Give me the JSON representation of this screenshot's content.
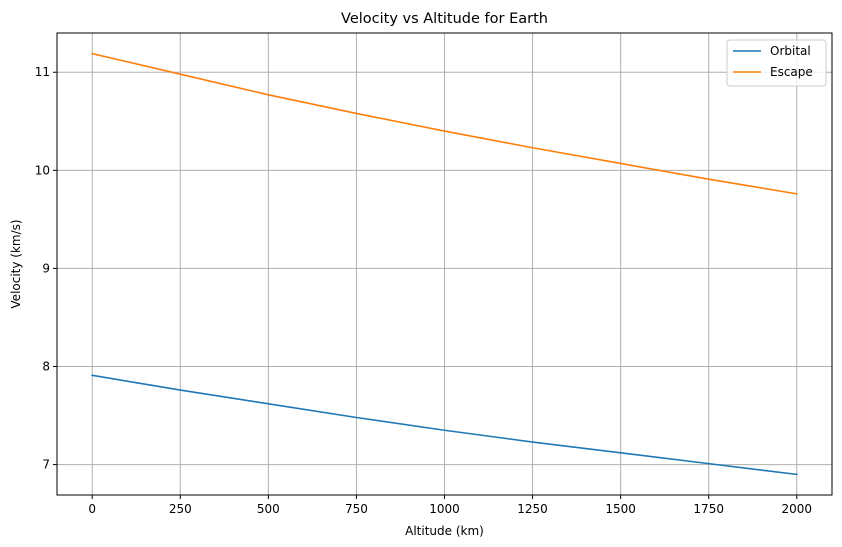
{
  "chart_data": {
    "type": "line",
    "title": "Velocity vs Altitude for Earth",
    "xlabel": "Altitude (km)",
    "ylabel": "Velocity (km/s)",
    "xlim": [
      -100,
      2100
    ],
    "ylim": [
      6.69,
      11.4
    ],
    "xticks": [
      0,
      250,
      500,
      750,
      1000,
      1250,
      1500,
      1750,
      2000
    ],
    "yticks": [
      7,
      8,
      9,
      10,
      11
    ],
    "grid": true,
    "legend_position": "top-right",
    "x": [
      0,
      250,
      500,
      750,
      1000,
      1250,
      1500,
      1750,
      2000
    ],
    "series": [
      {
        "name": "Orbital",
        "color": "#1f77b4",
        "values": [
          7.91,
          7.76,
          7.62,
          7.48,
          7.35,
          7.23,
          7.12,
          7.01,
          6.9
        ]
      },
      {
        "name": "Escape",
        "color": "#ff7f0e",
        "values": [
          11.19,
          10.98,
          10.77,
          10.58,
          10.4,
          10.23,
          10.07,
          9.91,
          9.76
        ]
      }
    ]
  }
}
